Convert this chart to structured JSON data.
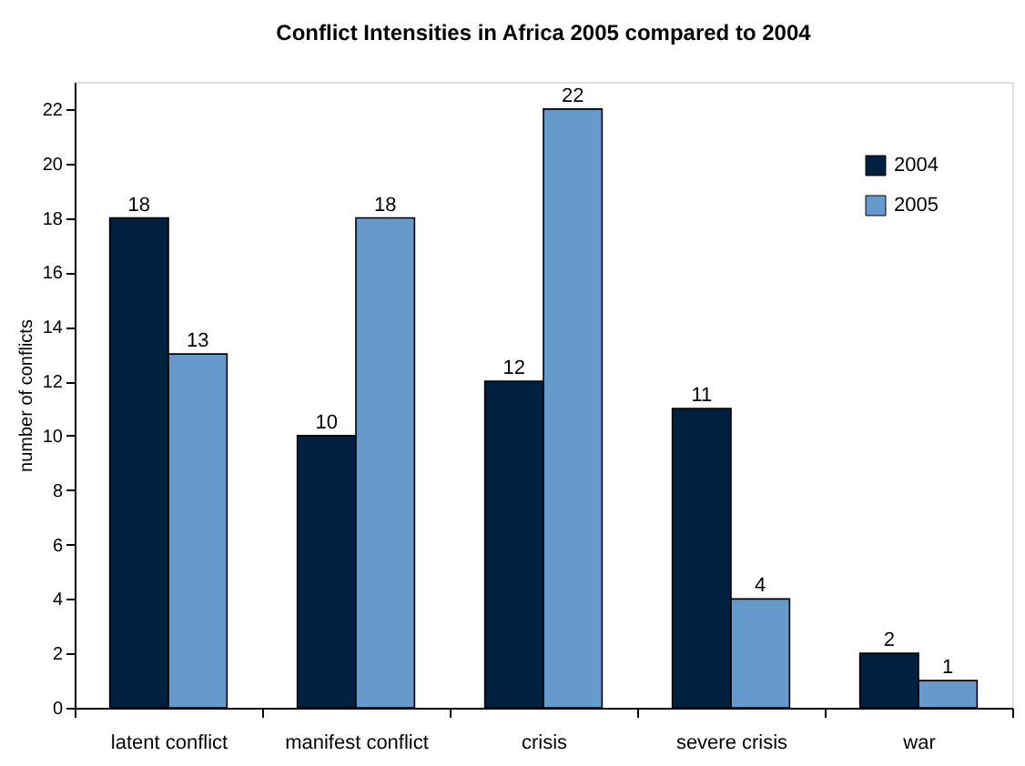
{
  "chart_data": {
    "type": "bar",
    "title": "Conflict Intensities in Africa 2005 compared to 2004",
    "ylabel": "number of conflicts",
    "categories": [
      "latent conflict",
      "manifest conflict",
      "crisis",
      "severe crisis",
      "war"
    ],
    "series": [
      {
        "name": "2004",
        "color": "#002040",
        "values": [
          18,
          10,
          12,
          11,
          2
        ]
      },
      {
        "name": "2005",
        "color": "#6699cc",
        "values": [
          13,
          18,
          22,
          4,
          1
        ]
      }
    ],
    "ylim": [
      0,
      23
    ],
    "yticks": [
      0,
      2,
      4,
      6,
      8,
      10,
      12,
      14,
      16,
      18,
      20,
      22
    ],
    "grid": false,
    "legend": "top right",
    "data_labels": true
  }
}
